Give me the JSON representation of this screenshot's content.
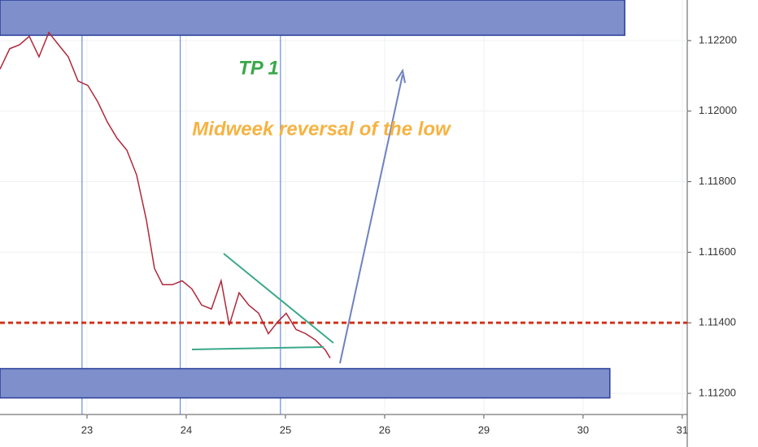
{
  "chart_data": {
    "type": "line",
    "annotations": [
      "TP 1",
      "Midweek reversal of the low"
    ],
    "x": [
      -0.877,
      -0.779,
      -0.68,
      -0.582,
      -0.484,
      -0.385,
      -0.287,
      -0.189,
      -0.09,
      0.008,
      0.107,
      0.205,
      0.303,
      0.402,
      0.5,
      0.598,
      0.68,
      0.762,
      0.861,
      0.959,
      1.057,
      1.156,
      1.254,
      1.352,
      1.434,
      1.533,
      1.631,
      1.73,
      1.828,
      1.926,
      2.008,
      2.107,
      2.205,
      2.303,
      2.402,
      2.451
    ],
    "series": [
      {
        "color": "#b0283a",
        "values": [
          1.12119,
          1.12177,
          1.12188,
          1.12212,
          1.12154,
          1.12223,
          1.12188,
          1.12154,
          1.12085,
          1.12073,
          1.12027,
          1.11969,
          1.11923,
          1.11889,
          1.11819,
          1.11692,
          1.11554,
          1.11508,
          1.11508,
          1.11519,
          1.11496,
          1.1145,
          1.11439,
          1.11519,
          1.11393,
          1.11485,
          1.1145,
          1.11427,
          1.11369,
          1.11404,
          1.11427,
          1.11381,
          1.11369,
          1.11351,
          1.11323,
          1.113
        ]
      }
    ],
    "zones": [
      {
        "color": "#7f8fcc",
        "from": 1.12215,
        "to": 1.12315,
        "x_end": 5.42
      },
      {
        "color": "#7f8fcc",
        "from": 1.11187,
        "to": 1.1127,
        "x_end": 5.27
      }
    ],
    "level": {
      "value": 1.114,
      "color": "#d0341c"
    },
    "sessions": [
      -0.05,
      0.94,
      1.95
    ],
    "xlim": [
      -0.877,
      6.05
    ],
    "xticks": [
      {
        "value": 0,
        "label": "23"
      },
      {
        "value": 1,
        "label": "24"
      },
      {
        "value": 2,
        "label": "25"
      },
      {
        "value": 3,
        "label": "26"
      },
      {
        "value": 4,
        "label": "29"
      },
      {
        "value": 5,
        "label": "30"
      },
      {
        "value": 6,
        "label": "31"
      }
    ],
    "ylim": [
      1.1114,
      1.12315
    ],
    "yticks": [
      {
        "value": 1.112,
        "label": "1.11200"
      },
      {
        "value": 1.114,
        "label": "1.11400"
      },
      {
        "value": 1.116,
        "label": "1.11600"
      },
      {
        "value": 1.118,
        "label": "1.11800"
      },
      {
        "value": 1.12,
        "label": "1.12000"
      },
      {
        "value": 1.122,
        "label": "1.12200"
      }
    ],
    "grid": true
  }
}
